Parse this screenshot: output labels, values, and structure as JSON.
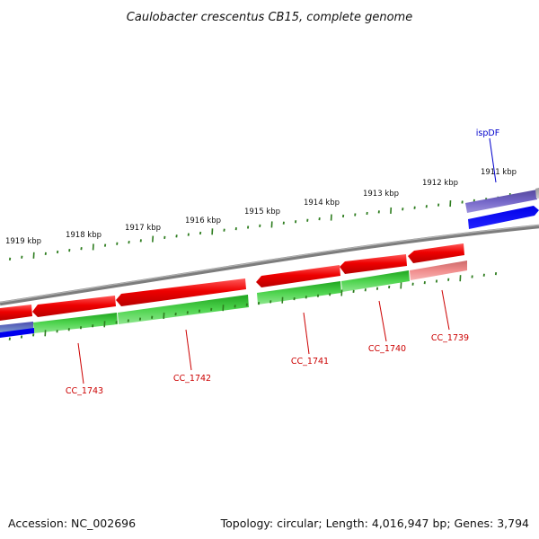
{
  "title": "Caulobacter crescentus CB15, complete genome",
  "footer": {
    "accession": "Accession: NC_002696",
    "summary": "Topology: circular; Length: 4,016,947 bp; Genes: 3,794"
  },
  "colors": {
    "backbone": "#7a7a7a",
    "tick": "#2e7d1f",
    "forward_cds": "#e60000",
    "reverse_cds": "#3cc43c",
    "forward_rna": "#6a5acd",
    "reverse_rna": "#0000ee",
    "pseudo": "#ef8080",
    "label_forward": "#0000cc",
    "label_reverse": "#cc0000"
  },
  "ticks": [
    {
      "kbp": 1911,
      "label": "1911 kbp"
    },
    {
      "kbp": 1912,
      "label": "1912 kbp"
    },
    {
      "kbp": 1913,
      "label": "1913 kbp"
    },
    {
      "kbp": 1914,
      "label": "1914 kbp"
    },
    {
      "kbp": 1915,
      "label": "1915 kbp"
    },
    {
      "kbp": 1916,
      "label": "1916 kbp"
    },
    {
      "kbp": 1917,
      "label": "1917 kbp"
    },
    {
      "kbp": 1918,
      "label": "1918 kbp"
    },
    {
      "kbp": 1919,
      "label": "1919 kbp"
    }
  ],
  "gene_labels": [
    {
      "id": "ispDF",
      "text": "ispDF",
      "strand": "forward"
    },
    {
      "id": "CC_1739",
      "text": "CC_1739",
      "strand": "reverse"
    },
    {
      "id": "CC_1740",
      "text": "CC_1740",
      "strand": "reverse"
    },
    {
      "id": "CC_1741",
      "text": "CC_1741",
      "strand": "reverse"
    },
    {
      "id": "CC_1742",
      "text": "CC_1742",
      "strand": "reverse"
    },
    {
      "id": "CC_1743",
      "text": "CC_1743",
      "strand": "reverse"
    }
  ]
}
